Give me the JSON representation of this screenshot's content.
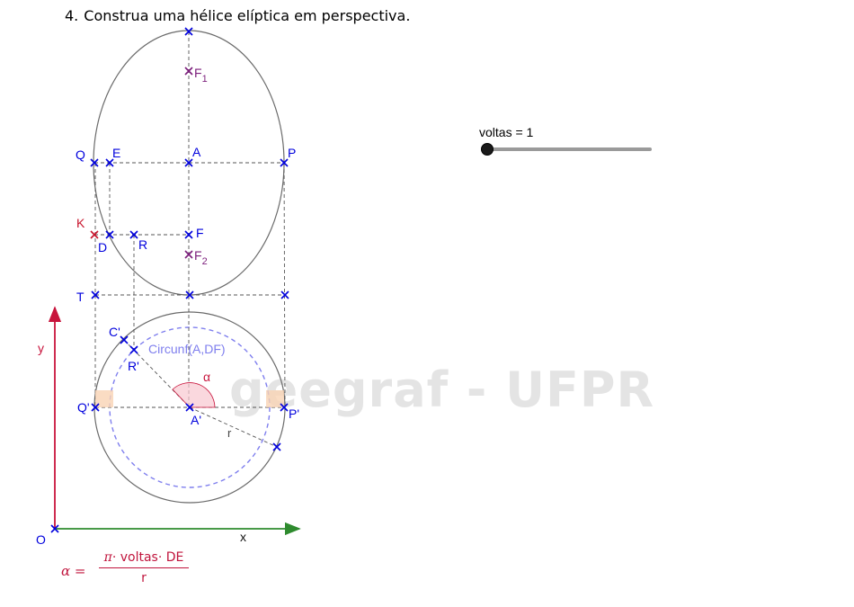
{
  "title": {
    "number": "4.",
    "text": "Construa uma hélice elíptica em perspectiva."
  },
  "slider": {
    "label": "voltas = 1",
    "value": 1
  },
  "watermark": "geegraf - UFPR",
  "points": {
    "F1": "F",
    "F1_sub": "1",
    "F2": "F",
    "F2_sub": "2",
    "Q": "Q",
    "E": "E",
    "A": "A",
    "P": "P",
    "K": "K",
    "D": "D",
    "R": "R",
    "F": "F",
    "T": "T",
    "C_prime": "C'",
    "R_prime": "R'",
    "Q_prime": "Q'",
    "A_prime": "A'",
    "P_prime": "P'",
    "O": "O"
  },
  "labels": {
    "circumference": "Circunf(A,DF)",
    "alpha": "α",
    "r": "r",
    "x_axis": "x",
    "y_axis": "y"
  },
  "formula": {
    "lhs": "α =",
    "numerator_pi": "π",
    "numerator_rest": "· voltas· DE",
    "denominator": "r"
  },
  "colors": {
    "point_blue": "#0000dd",
    "point_purple": "#7b1e7b",
    "point_red": "#c8142c",
    "y_axis": "#c8143c",
    "x_axis": "#2e8b2e",
    "circle_dashed": "#7f7fee",
    "curve_gray": "#606060",
    "angle_fill": "#f8c8d0",
    "marker_fill": "#f9d3b4"
  }
}
